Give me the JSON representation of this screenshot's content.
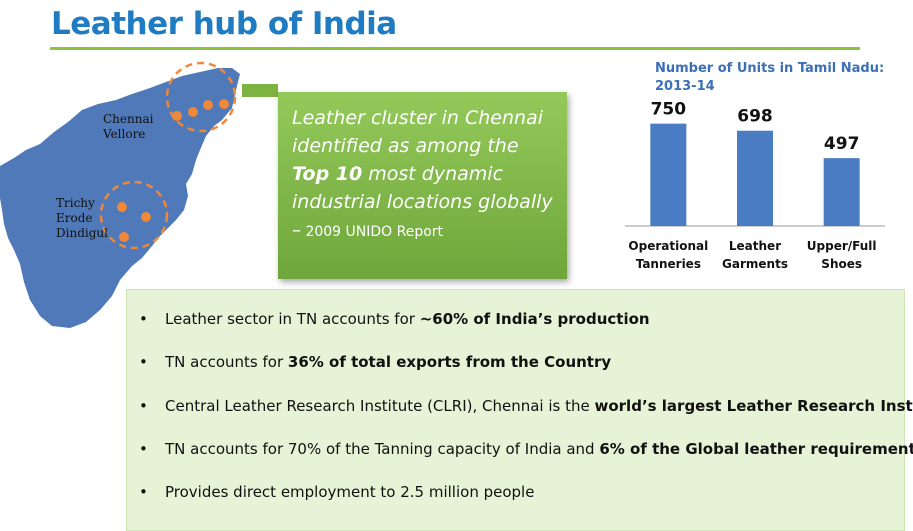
{
  "title": "Leather hub of India",
  "map": {
    "label_north": "Chennai\nVellore",
    "label_north_1": "Chennai",
    "label_north_2": "Vellore",
    "label_south_1": "Trichy",
    "label_south_2": "Erode",
    "label_south_3": "Dindigul"
  },
  "callout": {
    "line1": "Leather cluster in Chennai",
    "line2": "identified as among the",
    "line3_bold": "Top 10",
    "line3_rest": " most dynamic",
    "line4": "industrial locations globally",
    "dash": "–",
    "source": "2009 UNIDO Report"
  },
  "chart_title": "Number of Units in Tamil Nadu: 2013-14",
  "chart_data": {
    "type": "bar",
    "title": "Number of Units in Tamil Nadu: 2013-14",
    "categories": [
      "Operational Tanneries",
      "Leather Garments",
      "Upper/Full Shoes"
    ],
    "category_lines": [
      [
        "Operational",
        "Tanneries"
      ],
      [
        "Leather",
        "Garments"
      ],
      [
        "Upper/Full",
        "Shoes"
      ]
    ],
    "values": [
      750,
      698,
      497
    ],
    "value_labels": [
      "750",
      "698",
      "497"
    ],
    "ylim": [
      0,
      850
    ],
    "bar_color": "#4a7cc3"
  },
  "bullets": [
    {
      "pre": "Leather sector in TN accounts for ",
      "bold": "~60%  of India’s production",
      "post": ""
    },
    {
      "pre": "TN accounts for ",
      "bold": "36% of total exports from the Country",
      "post": ""
    },
    {
      "pre": "Central Leather Research Institute (CLRI), Chennai is the ",
      "bold": "world’s largest Leather Research Institute",
      "post": ""
    },
    {
      "pre": "TN accounts for  70% of the Tanning capacity of India and ",
      "bold": "6% of the Global leather requirement",
      "post": ""
    },
    {
      "pre": "Provides direct employment to 2.5 million people",
      "bold": "",
      "post": ""
    }
  ],
  "colors": {
    "title": "#1f7bc2",
    "accent_green": "#8cc43f",
    "map_blue": "#4f79b8",
    "cluster_orange": "#f0883a"
  }
}
